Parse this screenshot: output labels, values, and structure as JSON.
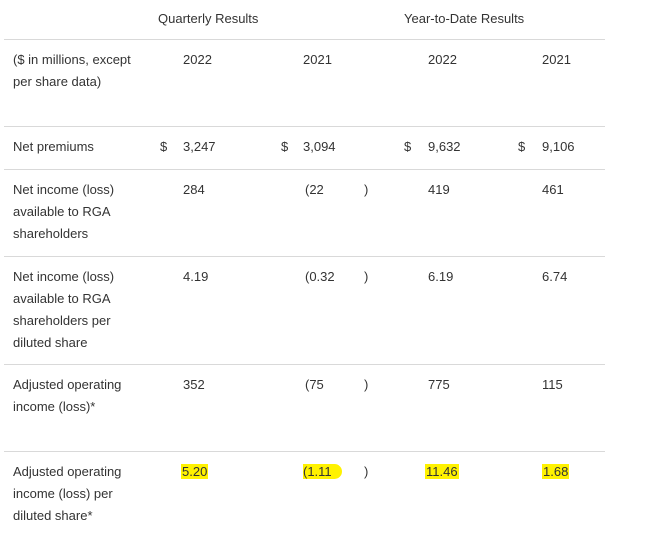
{
  "header": {
    "quarterly": "Quarterly Results",
    "ytd": "Year-to-Date Results"
  },
  "columns": {
    "label": "($ in millions, except per share data)",
    "q2022": "2022",
    "q2021": "2021",
    "y2022": "2022",
    "y2021": "2021"
  },
  "rows": [
    {
      "label": "Net premiums",
      "q2022": {
        "cur": "$",
        "val": "3,247"
      },
      "q2021": {
        "cur": "$",
        "val": "3,094"
      },
      "y2022": {
        "cur": "$",
        "val": "9,632"
      },
      "y2021": {
        "cur": "$",
        "val": "9,106"
      }
    },
    {
      "label": "Net income (loss) available to RGA shareholders",
      "q2022": {
        "val": "284"
      },
      "q2021": {
        "val": "(22",
        "close": ")"
      },
      "y2022": {
        "val": "419"
      },
      "y2021": {
        "val": "461"
      }
    },
    {
      "label": "Net income (loss) available to RGA shareholders per diluted share",
      "q2022": {
        "val": "4.19"
      },
      "q2021": {
        "val": "(0.32",
        "close": ")"
      },
      "y2022": {
        "val": "6.19"
      },
      "y2021": {
        "val": "6.74"
      }
    },
    {
      "label": "Adjusted operating income (loss)*",
      "q2022": {
        "val": "352"
      },
      "q2021": {
        "val": "(75",
        "close": ")"
      },
      "y2022": {
        "val": "775"
      },
      "y2021": {
        "val": "115"
      }
    },
    {
      "label": "Adjusted operating income (loss) per diluted share*",
      "q2022": {
        "val": "5.20"
      },
      "q2021": {
        "val": "(1.11",
        "close": ")"
      },
      "y2022": {
        "val": "11.46"
      },
      "y2021": {
        "val": "1.68"
      }
    }
  ],
  "highlight_color": "#fff200"
}
